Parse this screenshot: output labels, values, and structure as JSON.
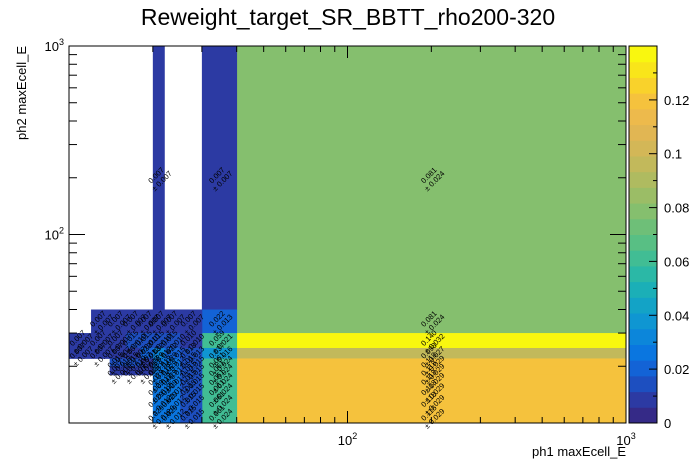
{
  "chart_data": {
    "type": "heatmap",
    "title": "Reweight_target_SR_BBTT_rho200-320",
    "xlabel": "ph1 maxEcell_E",
    "ylabel": "ph2 maxEcell_E",
    "x_scale": "log",
    "y_scale": "log",
    "xlim": [
      10,
      1000
    ],
    "ylim": [
      10,
      1000
    ],
    "x_major_ticks": [
      {
        "label": "10",
        "sup": "2",
        "value": 100
      },
      {
        "label": "10",
        "sup": "3",
        "value": 1000
      }
    ],
    "y_major_ticks": [
      {
        "label": "10",
        "sup": "2",
        "value": 100
      },
      {
        "label": "10",
        "sup": "3",
        "value": 1000
      }
    ],
    "x_edges": [
      10,
      12,
      14,
      16,
      18,
      20,
      22,
      25,
      30,
      40,
      1000
    ],
    "y_edges": [
      10,
      12,
      14,
      16,
      18,
      20,
      22,
      25,
      30,
      40,
      1000
    ],
    "z_range": [
      0,
      0.14
    ],
    "colorbar_ticks": [
      "0",
      "0.02",
      "0.04",
      "0.06",
      "0.08",
      "0.1",
      "0.12"
    ],
    "colorbar_tick_values": [
      0,
      0.02,
      0.04,
      0.06,
      0.08,
      0.1,
      0.12
    ],
    "palette": [
      "#352a87",
      "#2c3aa3",
      "#1d4fc0",
      "#1363d6",
      "#0a76e0",
      "#0c86da",
      "#0f96d2",
      "#13a3c6",
      "#1bafb7",
      "#2bb8a6",
      "#41bd94",
      "#58bf84",
      "#6ebf78",
      "#85bf6e",
      "#9bbd66",
      "#afbb60",
      "#c2b95b",
      "#d3b757",
      "#e1b653",
      "#edba4c",
      "#f5c23d",
      "#f9d22b",
      "#f9e51a",
      "#f9f70f"
    ],
    "cells": [
      {
        "ix": 9,
        "iy": 9,
        "value": 0.081,
        "error": 0.024
      },
      {
        "ix": 9,
        "iy": 8,
        "value": 0.081,
        "error": 0.024
      },
      {
        "ix": 9,
        "iy": 7,
        "value": 0.14,
        "error": 0.032
      },
      {
        "ix": 9,
        "iy": 6,
        "value": 0.098,
        "error": 0.027
      },
      {
        "ix": 9,
        "iy": 5,
        "value": 0.118,
        "error": 0.029
      },
      {
        "ix": 9,
        "iy": 4,
        "value": 0.118,
        "error": 0.029
      },
      {
        "ix": 9,
        "iy": 3,
        "value": 0.118,
        "error": 0.029
      },
      {
        "ix": 9,
        "iy": 2,
        "value": 0.118,
        "error": 0.029
      },
      {
        "ix": 9,
        "iy": 1,
        "value": 0.118,
        "error": 0.029
      },
      {
        "ix": 9,
        "iy": 0,
        "value": 0.118,
        "error": 0.029
      },
      {
        "ix": 8,
        "iy": 9,
        "value": 0.007,
        "error": 0.007
      },
      {
        "ix": 8,
        "iy": 8,
        "value": 0.022,
        "error": 0.013
      },
      {
        "ix": 8,
        "iy": 7,
        "value": 0.059,
        "error": 0.021
      },
      {
        "ix": 8,
        "iy": 6,
        "value": 0.037,
        "error": 0.016
      },
      {
        "ix": 8,
        "iy": 5,
        "value": 0.061,
        "error": 0.024
      },
      {
        "ix": 8,
        "iy": 4,
        "value": 0.061,
        "error": 0.024
      },
      {
        "ix": 8,
        "iy": 3,
        "value": 0.061,
        "error": 0.024
      },
      {
        "ix": 8,
        "iy": 2,
        "value": 0.061,
        "error": 0.024
      },
      {
        "ix": 8,
        "iy": 1,
        "value": 0.061,
        "error": 0.024
      },
      {
        "ix": 8,
        "iy": 0,
        "value": 0.061,
        "error": 0.024
      },
      {
        "ix": 7,
        "iy": 8,
        "value": 0.007,
        "error": 0.007
      },
      {
        "ix": 7,
        "iy": 7,
        "value": 0.01,
        "error": 0.01
      },
      {
        "ix": 7,
        "iy": 6,
        "value": 0.013,
        "error": 0.013
      },
      {
        "ix": 7,
        "iy": 5,
        "value": 0.015,
        "error": 0.015
      },
      {
        "ix": 7,
        "iy": 4,
        "value": 0.015,
        "error": 0.015
      },
      {
        "ix": 7,
        "iy": 3,
        "value": 0.015,
        "error": 0.015
      },
      {
        "ix": 7,
        "iy": 2,
        "value": 0.015,
        "error": 0.015
      },
      {
        "ix": 7,
        "iy": 1,
        "value": 0.015,
        "error": 0.015
      },
      {
        "ix": 7,
        "iy": 0,
        "value": 0.015,
        "error": 0.015
      },
      {
        "ix": 6,
        "iy": 8,
        "value": 0.007,
        "error": 0.007
      },
      {
        "ix": 6,
        "iy": 7,
        "value": 0.015,
        "error": 0.01
      },
      {
        "ix": 6,
        "iy": 6,
        "value": 0.022,
        "error": 0.015
      },
      {
        "ix": 6,
        "iy": 5,
        "value": 0.029,
        "error": 0.012
      },
      {
        "ix": 6,
        "iy": 4,
        "value": 0.029,
        "error": 0.012
      },
      {
        "ix": 6,
        "iy": 3,
        "value": 0.029,
        "error": 0.012
      },
      {
        "ix": 6,
        "iy": 2,
        "value": 0.029,
        "error": 0.012
      },
      {
        "ix": 6,
        "iy": 1,
        "value": 0.029,
        "error": 0.012
      },
      {
        "ix": 6,
        "iy": 0,
        "value": 0.029,
        "error": 0.012
      },
      {
        "ix": 5,
        "iy": 9,
        "value": 0.007,
        "error": 0.007
      },
      {
        "ix": 5,
        "iy": 8,
        "value": 0.007,
        "error": 0.007
      },
      {
        "ix": 5,
        "iy": 7,
        "value": 0.015,
        "error": 0.01
      },
      {
        "ix": 5,
        "iy": 6,
        "value": 0.032,
        "error": 0.012
      },
      {
        "ix": 5,
        "iy": 5,
        "value": 0.029,
        "error": 0.012
      },
      {
        "ix": 5,
        "iy": 4,
        "value": 0.029,
        "error": 0.012
      },
      {
        "ix": 5,
        "iy": 3,
        "value": 0.029,
        "error": 0.012
      },
      {
        "ix": 5,
        "iy": 2,
        "value": 0.029,
        "error": 0.012
      },
      {
        "ix": 5,
        "iy": 1,
        "value": 0.029,
        "error": 0.012
      },
      {
        "ix": 5,
        "iy": 0,
        "value": 0.029,
        "error": 0.012
      },
      {
        "ix": 4,
        "iy": 8,
        "value": 0.007,
        "error": 0.007
      },
      {
        "ix": 4,
        "iy": 7,
        "value": 0.015,
        "error": 0.01
      },
      {
        "ix": 4,
        "iy": 6,
        "value": 0.022,
        "error": 0.012
      },
      {
        "ix": 4,
        "iy": 5,
        "value": 0.007,
        "error": 0.007
      },
      {
        "ix": 4,
        "iy": 4,
        "value": 0.007,
        "error": 0.007
      },
      {
        "ix": 3,
        "iy": 8,
        "value": 0.007,
        "error": 0.007
      },
      {
        "ix": 3,
        "iy": 7,
        "value": 0.015,
        "error": 0.01
      },
      {
        "ix": 3,
        "iy": 6,
        "value": 0.007,
        "error": 0.007
      },
      {
        "ix": 3,
        "iy": 5,
        "value": 0.015,
        "error": 0.01
      },
      {
        "ix": 3,
        "iy": 4,
        "value": 0.007,
        "error": 0.007
      },
      {
        "ix": 2,
        "iy": 8,
        "value": 0.007,
        "error": 0.007
      },
      {
        "ix": 2,
        "iy": 7,
        "value": 0.007,
        "error": 0.007
      },
      {
        "ix": 2,
        "iy": 6,
        "value": 0.007,
        "error": 0.007
      },
      {
        "ix": 2,
        "iy": 5,
        "value": 0.015,
        "error": 0.01
      },
      {
        "ix": 2,
        "iy": 4,
        "value": 0.007,
        "error": 0.007
      },
      {
        "ix": 1,
        "iy": 8,
        "value": 0.007,
        "error": 0.007
      },
      {
        "ix": 1,
        "iy": 7,
        "value": 0.007,
        "error": 0.007
      },
      {
        "ix": 1,
        "iy": 6,
        "value": 0.007,
        "error": 0.007
      },
      {
        "ix": 0,
        "iy": 7,
        "value": 0.007,
        "error": 0.007
      },
      {
        "ix": 0,
        "iy": 6,
        "value": 0.007,
        "error": 0.007
      }
    ]
  }
}
